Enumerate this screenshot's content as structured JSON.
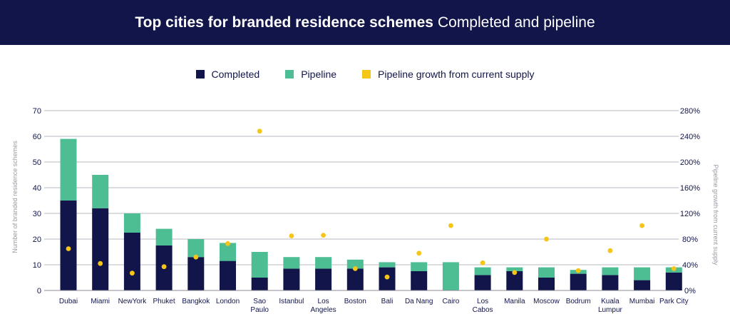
{
  "header": {
    "title_bold": "Top cities for branded residence schemes",
    "title_light": "Completed and pipeline"
  },
  "colors": {
    "completed": "#11154a",
    "pipeline": "#4dbd94",
    "growth": "#f5c518",
    "grid": "#b9b9c2"
  },
  "chart_data": {
    "type": "bar",
    "stacked": true,
    "categories": [
      [
        "Dubai"
      ],
      [
        "Miami"
      ],
      [
        "NewYork"
      ],
      [
        "Phuket"
      ],
      [
        "Bangkok"
      ],
      [
        "London"
      ],
      [
        "Sao",
        "Paulo"
      ],
      [
        "Istanbul"
      ],
      [
        "Los",
        "Angeles"
      ],
      [
        "Boston"
      ],
      [
        "Bali"
      ],
      [
        "Da Nang"
      ],
      [
        "Cairo"
      ],
      [
        "Los",
        "Cabos"
      ],
      [
        "Manila"
      ],
      [
        "Moscow"
      ],
      [
        "Bodrum"
      ],
      [
        "Kuala",
        "Lumpur"
      ],
      [
        "Mumbai"
      ],
      [
        "Park City"
      ]
    ],
    "series": [
      {
        "name": "Completed",
        "type": "bar",
        "axis": "left",
        "values": [
          35,
          32,
          22.5,
          17.5,
          13,
          11.5,
          5,
          8.5,
          8.5,
          8.5,
          9,
          7.5,
          0,
          6,
          7.5,
          5,
          6.5,
          6,
          4,
          7
        ]
      },
      {
        "name": "Pipeline",
        "type": "bar",
        "axis": "left",
        "values": [
          24,
          13,
          7.5,
          6.5,
          7,
          7,
          10,
          4.5,
          4.5,
          3.5,
          2,
          3.5,
          11,
          3,
          1.5,
          4,
          1.5,
          3,
          5,
          2
        ]
      },
      {
        "name": "Pipeline growth from current supply",
        "type": "scatter",
        "axis": "right",
        "values": [
          65,
          42,
          27,
          37,
          52,
          73,
          248,
          85,
          86,
          34,
          21,
          58,
          101,
          43,
          28,
          80,
          31,
          62,
          101,
          34
        ]
      }
    ],
    "y_left": {
      "label": "Number of branded residence schemes",
      "min": 0,
      "max": 70,
      "ticks": [
        0,
        10,
        20,
        30,
        40,
        50,
        60,
        70
      ]
    },
    "y_right": {
      "label": "Pipeline growth from current supply",
      "min": 0,
      "max": 280,
      "ticks": [
        "0%",
        "40%",
        "80%",
        "120%",
        "160%",
        "200%",
        "240%",
        "280%"
      ],
      "tick_values": [
        0,
        40,
        80,
        120,
        160,
        200,
        240,
        280
      ]
    },
    "grid": true,
    "legend_position": "top-center"
  }
}
